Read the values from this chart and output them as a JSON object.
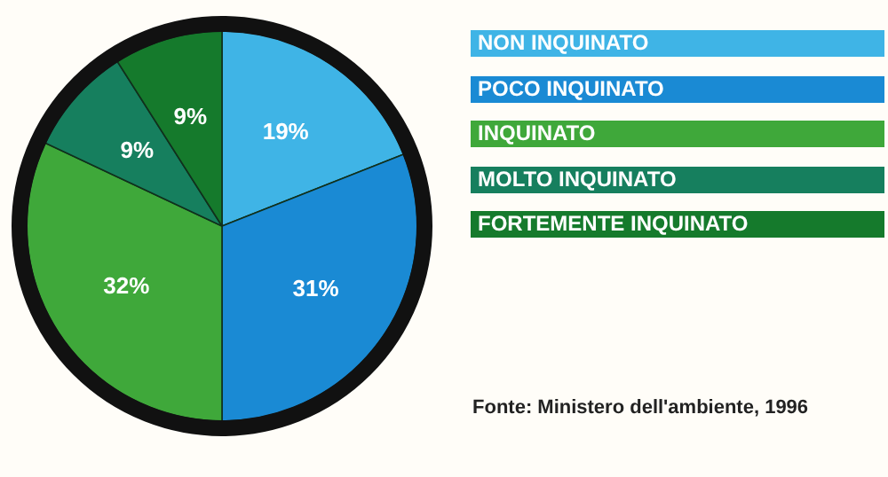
{
  "chart_data": {
    "type": "pie",
    "categories": [
      "NON INQUINATO",
      "POCO INQUINATO",
      "INQUINATO",
      "MOLTO INQUINATO",
      "FORTEMENTE INQUINATO"
    ],
    "values": [
      19,
      31,
      32,
      9,
      9
    ],
    "colors": [
      "#3fb4e6",
      "#1a8ad4",
      "#3fa83a",
      "#167f5e",
      "#157a2c"
    ],
    "value_labels": [
      "19%",
      "31%",
      "32%",
      "9%",
      "9%"
    ],
    "legend": "right",
    "annotations": [
      "Fonte: Ministero dell'ambiente, 1996"
    ]
  }
}
